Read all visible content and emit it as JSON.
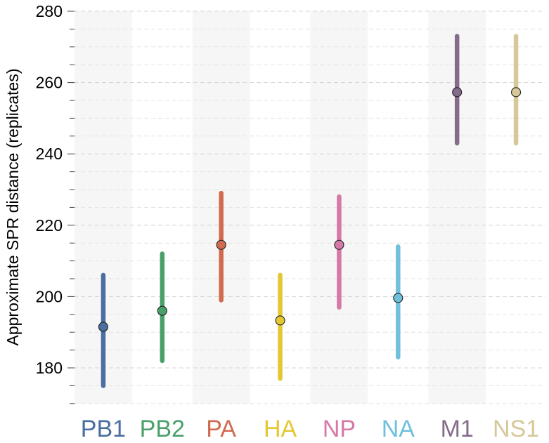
{
  "chart_data": {
    "type": "scatter",
    "ylabel": "Approximate SPR distance (replicates)",
    "xlabel": "",
    "ylim": [
      170,
      280
    ],
    "yticks_major": [
      180,
      200,
      220,
      240,
      260,
      280
    ],
    "yticks_major_labels": [
      "180",
      "200",
      "220",
      "240",
      "260",
      "280"
    ],
    "ytick_minor_step": 5,
    "grid": "horizontal dashed",
    "alternate_shading": true,
    "categories": [
      "PB1",
      "PB2",
      "PA",
      "HA",
      "NP",
      "NA",
      "M1",
      "NS1"
    ],
    "series": [
      {
        "values": [
          191.5,
          196,
          214.5,
          193.3,
          214.5,
          199.6,
          257.3,
          257.3
        ],
        "lower": [
          175,
          182,
          199,
          177,
          197,
          183,
          243,
          243
        ],
        "upper": [
          206,
          212,
          229,
          206,
          228,
          214,
          273,
          273
        ]
      }
    ],
    "colors": [
      "#4a6fa0",
      "#4aa06a",
      "#d06b50",
      "#e3c832",
      "#d479a8",
      "#70c0dc",
      "#846c8a",
      "#d6c898"
    ]
  }
}
